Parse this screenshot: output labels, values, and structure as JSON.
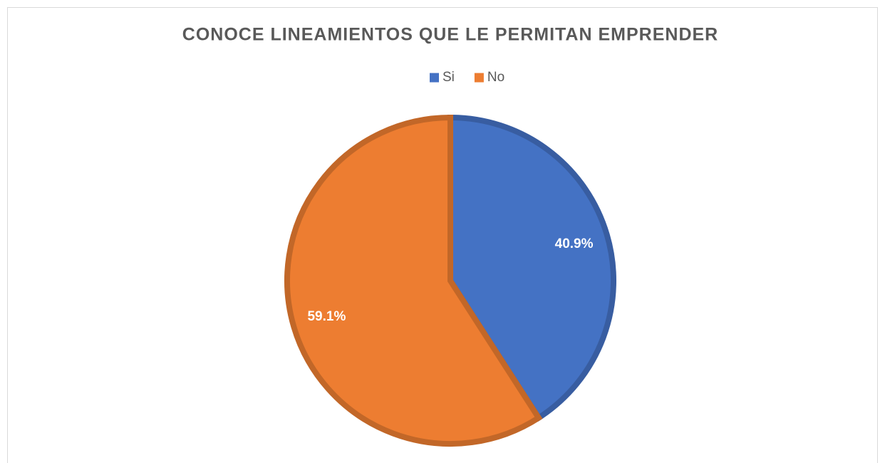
{
  "chart_data": {
    "type": "pie",
    "title": "CONOCE LINEAMIENTOS QUE LE PERMITAN EMPRENDER",
    "categories": [
      "Si",
      "No"
    ],
    "values": [
      40.9,
      59.1
    ],
    "value_labels": [
      "40.9%",
      "59.1%"
    ],
    "colors": [
      "#4472c4",
      "#ed7d31"
    ],
    "legend": "top"
  }
}
